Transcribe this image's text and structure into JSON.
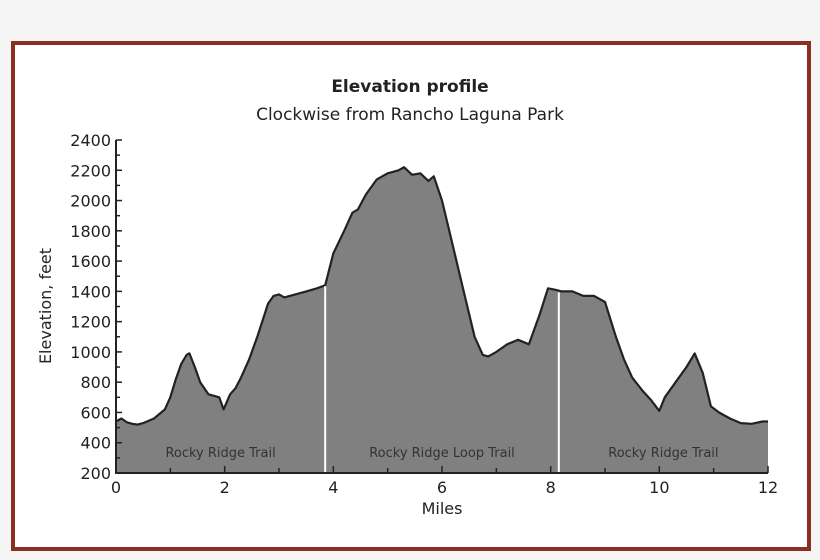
{
  "chart_data": {
    "type": "area",
    "title": "Elevation profile",
    "subtitle": "Clockwise from Rancho Laguna Park",
    "xlabel": "Miles",
    "ylabel": "Elevation, feet",
    "xlim": [
      0,
      12
    ],
    "ylim": [
      200,
      2400
    ],
    "x_ticks": [
      0,
      2,
      4,
      6,
      8,
      10,
      12
    ],
    "y_ticks": [
      200,
      400,
      600,
      800,
      1000,
      1200,
      1400,
      1600,
      1800,
      2000,
      2200,
      2400
    ],
    "grid": false,
    "fill_color": "#808080",
    "line_color": "#222222",
    "series": [
      {
        "name": "Elevation",
        "x": [
          0,
          0.1,
          0.2,
          0.3,
          0.4,
          0.5,
          0.7,
          0.9,
          1.0,
          1.1,
          1.2,
          1.3,
          1.35,
          1.45,
          1.55,
          1.7,
          1.9,
          1.98,
          2.1,
          2.2,
          2.3,
          2.45,
          2.6,
          2.8,
          2.9,
          3.0,
          3.1,
          3.3,
          3.5,
          3.7,
          3.85,
          4.0,
          4.2,
          4.35,
          4.45,
          4.6,
          4.8,
          5.0,
          5.2,
          5.3,
          5.45,
          5.6,
          5.75,
          5.85,
          6.0,
          6.2,
          6.4,
          6.6,
          6.75,
          6.85,
          7.0,
          7.2,
          7.4,
          7.6,
          7.8,
          7.95,
          8.1,
          8.2,
          8.4,
          8.6,
          8.8,
          9.0,
          9.2,
          9.35,
          9.5,
          9.7,
          9.85,
          10.0,
          10.1,
          10.3,
          10.5,
          10.65,
          10.8,
          10.95,
          11.1,
          11.3,
          11.5,
          11.7,
          11.9,
          12.0
        ],
        "y": [
          540,
          560,
          535,
          525,
          520,
          530,
          560,
          620,
          700,
          820,
          920,
          980,
          990,
          900,
          800,
          720,
          700,
          620,
          720,
          760,
          830,
          950,
          1100,
          1320,
          1370,
          1380,
          1360,
          1380,
          1400,
          1420,
          1440,
          1650,
          1800,
          1920,
          1940,
          2040,
          2140,
          2180,
          2200,
          2220,
          2170,
          2180,
          2130,
          2160,
          2000,
          1700,
          1400,
          1100,
          980,
          970,
          1000,
          1050,
          1080,
          1050,
          1250,
          1420,
          1410,
          1400,
          1400,
          1370,
          1370,
          1330,
          1100,
          950,
          830,
          740,
          680,
          610,
          700,
          800,
          900,
          990,
          860,
          640,
          600,
          560,
          530,
          525,
          540,
          540
        ]
      }
    ],
    "annotations": [
      {
        "text": "Rocky Ridge Trail",
        "x_from": 0,
        "x_to": 3.85
      },
      {
        "text": "Rocky Ridge Loop Trail",
        "x_from": 3.85,
        "x_to": 8.15
      },
      {
        "text": "Rocky Ridge Trail",
        "x_from": 8.15,
        "x_to": 12
      }
    ],
    "segment_dividers": [
      3.85,
      8.15
    ]
  },
  "labels": {
    "title": "Elevation profile",
    "subtitle": "Clockwise from Rancho Laguna Park",
    "xlabel": "Miles",
    "ylabel": "Elevation, feet",
    "segments": [
      "Rocky Ridge Trail",
      "Rocky Ridge Loop Trail",
      "Rocky Ridge Trail"
    ]
  }
}
